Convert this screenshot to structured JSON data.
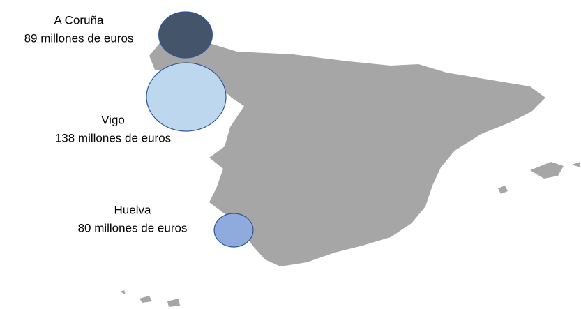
{
  "map": {
    "bubbles": [
      {
        "name": "A Coruña",
        "value": 89,
        "value_label": "89 millones de euros",
        "color": "#44546a"
      },
      {
        "name": "Vigo",
        "value": 138,
        "value_label": "138 millones de euros",
        "color": "#bdd7ee"
      },
      {
        "name": "Huelva",
        "value": 80,
        "value_label": "80 millones de euros",
        "color": "#8faadc"
      }
    ]
  }
}
